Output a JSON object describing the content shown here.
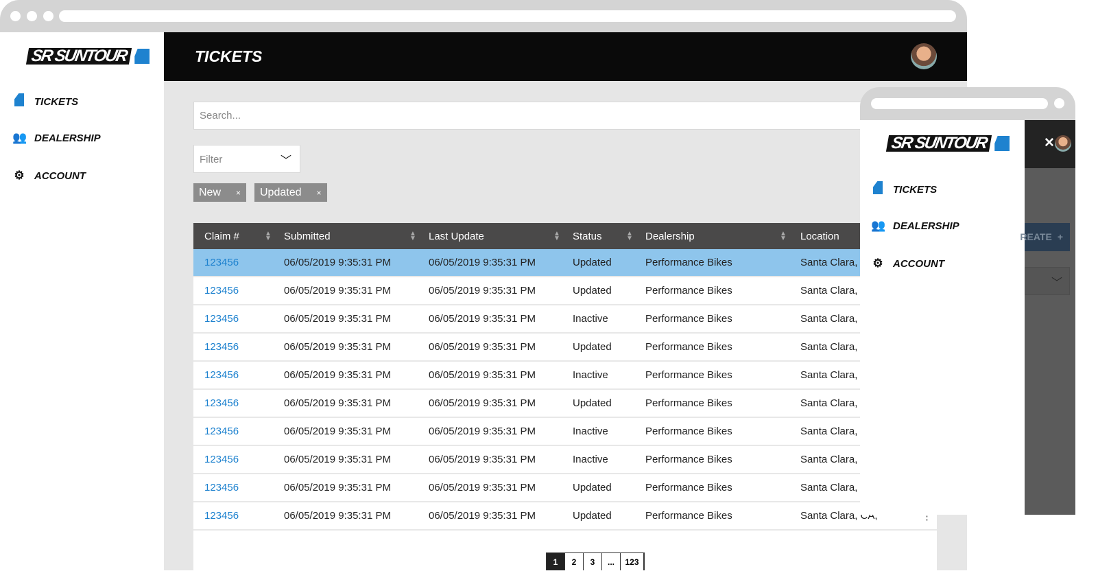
{
  "brand": {
    "logo_text": "SR SUNTOUR",
    "accent": "#1e82cf"
  },
  "sidebar": {
    "items": [
      {
        "label": "TICKETS",
        "icon": "ticket-icon"
      },
      {
        "label": "DEALERSHIP",
        "icon": "users-icon"
      },
      {
        "label": "ACCOUNT",
        "icon": "gear-icon"
      }
    ]
  },
  "header": {
    "title": "TICKETS"
  },
  "search": {
    "placeholder": "Search..."
  },
  "filter": {
    "placeholder": "Filter"
  },
  "chips": [
    {
      "label": "New",
      "remove": "×"
    },
    {
      "label": "Updated",
      "remove": "×"
    }
  ],
  "table": {
    "columns": [
      "Claim #",
      "Submitted",
      "Last Update",
      "Status",
      "Dealership",
      "Location"
    ],
    "rows": [
      [
        "123456",
        "06/05/2019 9:35:31 PM",
        "06/05/2019 9:35:31 PM",
        "Updated",
        "Performance Bikes",
        "Santa Clara,"
      ],
      [
        "123456",
        "06/05/2019 9:35:31 PM",
        "06/05/2019 9:35:31 PM",
        "Updated",
        "Performance Bikes",
        "Santa Clara,"
      ],
      [
        "123456",
        "06/05/2019 9:35:31 PM",
        "06/05/2019 9:35:31 PM",
        "Inactive",
        "Performance Bikes",
        "Santa Clara,"
      ],
      [
        "123456",
        "06/05/2019 9:35:31 PM",
        "06/05/2019 9:35:31 PM",
        "Updated",
        "Performance Bikes",
        "Santa Clara,"
      ],
      [
        "123456",
        "06/05/2019 9:35:31 PM",
        "06/05/2019 9:35:31 PM",
        "Inactive",
        "Performance Bikes",
        "Santa Clara,"
      ],
      [
        "123456",
        "06/05/2019 9:35:31 PM",
        "06/05/2019 9:35:31 PM",
        "Updated",
        "Performance Bikes",
        "Santa Clara,"
      ],
      [
        "123456",
        "06/05/2019 9:35:31 PM",
        "06/05/2019 9:35:31 PM",
        "Inactive",
        "Performance Bikes",
        "Santa Clara,"
      ],
      [
        "123456",
        "06/05/2019 9:35:31 PM",
        "06/05/2019 9:35:31 PM",
        "Inactive",
        "Performance Bikes",
        "Santa Clara,"
      ],
      [
        "123456",
        "06/05/2019 9:35:31 PM",
        "06/05/2019 9:35:31 PM",
        "Updated",
        "Performance Bikes",
        "Santa Clara,"
      ],
      [
        "123456",
        "06/05/2019 9:35:31 PM",
        "06/05/2019 9:35:31 PM",
        "Updated",
        "Performance Bikes",
        "Santa Clara, CA,"
      ]
    ],
    "row_menu": "⋮"
  },
  "pagination": [
    "1",
    "2",
    "3",
    "...",
    "123"
  ],
  "mobile": {
    "close": "✕",
    "create_label": "REATE",
    "create_icon": "+"
  }
}
